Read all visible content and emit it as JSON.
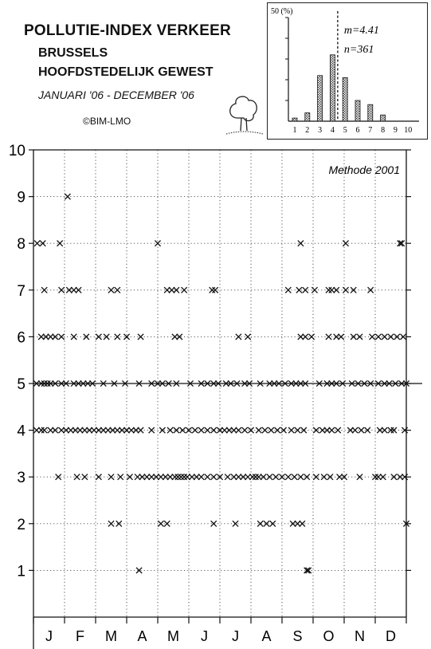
{
  "header": {
    "title": "POLLUTIE-INDEX VERKEER",
    "subtitle_line1": "BRUSSELS",
    "subtitle_line2": "HOOFDSTEDELIJK GEWEST",
    "period": "JANUARI '06 - DECEMBER '06",
    "credit": "©BIM-LMO"
  },
  "chart_data": [
    {
      "type": "scatter",
      "title": "",
      "method_label": "Methode 2001",
      "xlabel": "",
      "ylabel": "",
      "x_categories": [
        "J",
        "F",
        "M",
        "A",
        "M",
        "J",
        "J",
        "A",
        "S",
        "O",
        "N",
        "D"
      ],
      "ylim": [
        0,
        10
      ],
      "y_ticks": [
        1,
        2,
        3,
        4,
        5,
        6,
        7,
        8,
        9,
        10
      ],
      "grid": "dotted",
      "reference_line_y": 5,
      "marker": "x",
      "note": "x = month position (0-12 from start of year), y = daily pollution index",
      "points": [
        [
          0.12,
          8
        ],
        [
          0.3,
          8
        ],
        [
          0.85,
          8
        ],
        [
          4.0,
          8
        ],
        [
          8.6,
          8
        ],
        [
          10.05,
          8
        ],
        [
          11.8,
          8
        ],
        [
          11.85,
          8
        ],
        [
          1.1,
          9
        ],
        [
          0.35,
          7
        ],
        [
          0.9,
          7
        ],
        [
          1.15,
          7
        ],
        [
          1.3,
          7
        ],
        [
          1.45,
          7
        ],
        [
          2.5,
          7
        ],
        [
          2.7,
          7
        ],
        [
          4.3,
          7
        ],
        [
          4.45,
          7
        ],
        [
          4.6,
          7
        ],
        [
          4.85,
          7
        ],
        [
          5.75,
          7
        ],
        [
          5.85,
          7
        ],
        [
          8.2,
          7
        ],
        [
          8.55,
          7
        ],
        [
          8.75,
          7
        ],
        [
          9.05,
          7
        ],
        [
          9.5,
          7
        ],
        [
          9.6,
          7
        ],
        [
          9.75,
          7
        ],
        [
          10.05,
          7
        ],
        [
          10.3,
          7
        ],
        [
          10.85,
          7
        ],
        [
          0.25,
          6
        ],
        [
          0.4,
          6
        ],
        [
          0.55,
          6
        ],
        [
          0.7,
          6
        ],
        [
          0.9,
          6
        ],
        [
          1.3,
          6
        ],
        [
          1.7,
          6
        ],
        [
          2.1,
          6
        ],
        [
          2.35,
          6
        ],
        [
          2.7,
          6
        ],
        [
          3.0,
          6
        ],
        [
          3.45,
          6
        ],
        [
          4.55,
          6
        ],
        [
          4.7,
          6
        ],
        [
          6.6,
          6
        ],
        [
          6.9,
          6
        ],
        [
          8.6,
          6
        ],
        [
          8.75,
          6
        ],
        [
          8.95,
          6
        ],
        [
          9.5,
          6
        ],
        [
          9.75,
          6
        ],
        [
          9.9,
          6
        ],
        [
          10.3,
          6
        ],
        [
          10.5,
          6
        ],
        [
          10.9,
          6
        ],
        [
          11.1,
          6
        ],
        [
          11.3,
          6
        ],
        [
          11.5,
          6
        ],
        [
          11.7,
          6
        ],
        [
          11.9,
          6
        ],
        [
          0.1,
          5
        ],
        [
          0.25,
          5
        ],
        [
          0.35,
          5
        ],
        [
          0.45,
          5
        ],
        [
          0.55,
          5
        ],
        [
          0.7,
          5
        ],
        [
          0.9,
          5
        ],
        [
          1.05,
          5
        ],
        [
          1.3,
          5
        ],
        [
          1.45,
          5
        ],
        [
          1.6,
          5
        ],
        [
          1.75,
          5
        ],
        [
          1.9,
          5
        ],
        [
          2.25,
          5
        ],
        [
          2.6,
          5
        ],
        [
          2.95,
          5
        ],
        [
          3.4,
          5
        ],
        [
          3.8,
          5
        ],
        [
          4.0,
          5
        ],
        [
          4.15,
          5
        ],
        [
          4.35,
          5
        ],
        [
          4.6,
          5
        ],
        [
          5.05,
          5
        ],
        [
          5.4,
          5
        ],
        [
          5.6,
          5
        ],
        [
          5.8,
          5
        ],
        [
          5.95,
          5
        ],
        [
          6.2,
          5
        ],
        [
          6.35,
          5
        ],
        [
          6.55,
          5
        ],
        [
          6.8,
          5
        ],
        [
          6.95,
          5
        ],
        [
          7.3,
          5
        ],
        [
          7.6,
          5
        ],
        [
          7.75,
          5
        ],
        [
          7.9,
          5
        ],
        [
          8.1,
          5
        ],
        [
          8.3,
          5
        ],
        [
          8.45,
          5
        ],
        [
          8.6,
          5
        ],
        [
          8.75,
          5
        ],
        [
          9.2,
          5
        ],
        [
          9.45,
          5
        ],
        [
          9.6,
          5
        ],
        [
          9.75,
          5
        ],
        [
          9.95,
          5
        ],
        [
          10.25,
          5
        ],
        [
          10.45,
          5
        ],
        [
          10.65,
          5
        ],
        [
          10.85,
          5
        ],
        [
          11.1,
          5
        ],
        [
          11.3,
          5
        ],
        [
          11.45,
          5
        ],
        [
          11.65,
          5
        ],
        [
          11.85,
          5
        ],
        [
          12.0,
          5
        ],
        [
          0.1,
          4
        ],
        [
          0.25,
          4
        ],
        [
          0.35,
          4
        ],
        [
          0.55,
          4
        ],
        [
          0.7,
          4
        ],
        [
          0.9,
          4
        ],
        [
          1.05,
          4
        ],
        [
          1.2,
          4
        ],
        [
          1.35,
          4
        ],
        [
          1.5,
          4
        ],
        [
          1.65,
          4
        ],
        [
          1.8,
          4
        ],
        [
          1.95,
          4
        ],
        [
          2.1,
          4
        ],
        [
          2.25,
          4
        ],
        [
          2.4,
          4
        ],
        [
          2.55,
          4
        ],
        [
          2.7,
          4
        ],
        [
          2.85,
          4
        ],
        [
          3.0,
          4
        ],
        [
          3.15,
          4
        ],
        [
          3.3,
          4
        ],
        [
          3.45,
          4
        ],
        [
          3.8,
          4
        ],
        [
          4.15,
          4
        ],
        [
          4.4,
          4
        ],
        [
          4.6,
          4
        ],
        [
          4.8,
          4
        ],
        [
          5.0,
          4
        ],
        [
          5.2,
          4
        ],
        [
          5.4,
          4
        ],
        [
          5.6,
          4
        ],
        [
          5.8,
          4
        ],
        [
          6.0,
          4
        ],
        [
          6.15,
          4
        ],
        [
          6.3,
          4
        ],
        [
          6.45,
          4
        ],
        [
          6.6,
          4
        ],
        [
          6.8,
          4
        ],
        [
          7.0,
          4
        ],
        [
          7.25,
          4
        ],
        [
          7.45,
          4
        ],
        [
          7.65,
          4
        ],
        [
          7.85,
          4
        ],
        [
          8.05,
          4
        ],
        [
          8.3,
          4
        ],
        [
          8.5,
          4
        ],
        [
          8.7,
          4
        ],
        [
          9.1,
          4
        ],
        [
          9.3,
          4
        ],
        [
          9.45,
          4
        ],
        [
          9.6,
          4
        ],
        [
          9.8,
          4
        ],
        [
          10.2,
          4
        ],
        [
          10.35,
          4
        ],
        [
          10.55,
          4
        ],
        [
          10.75,
          4
        ],
        [
          11.15,
          4
        ],
        [
          11.3,
          4
        ],
        [
          11.5,
          4
        ],
        [
          11.6,
          4
        ],
        [
          11.95,
          4
        ],
        [
          0.8,
          3
        ],
        [
          1.4,
          3
        ],
        [
          1.65,
          3
        ],
        [
          2.1,
          3
        ],
        [
          2.5,
          3
        ],
        [
          2.8,
          3
        ],
        [
          3.1,
          3
        ],
        [
          3.35,
          3
        ],
        [
          3.5,
          3
        ],
        [
          3.65,
          3
        ],
        [
          3.8,
          3
        ],
        [
          3.95,
          3
        ],
        [
          4.1,
          3
        ],
        [
          4.25,
          3
        ],
        [
          4.4,
          3
        ],
        [
          4.55,
          3
        ],
        [
          4.65,
          3
        ],
        [
          4.75,
          3
        ],
        [
          4.85,
          3
        ],
        [
          4.95,
          3
        ],
        [
          5.1,
          3
        ],
        [
          5.25,
          3
        ],
        [
          5.4,
          3
        ],
        [
          5.6,
          3
        ],
        [
          5.8,
          3
        ],
        [
          6.0,
          3
        ],
        [
          6.25,
          3
        ],
        [
          6.45,
          3
        ],
        [
          6.6,
          3
        ],
        [
          6.75,
          3
        ],
        [
          6.9,
          3
        ],
        [
          7.05,
          3
        ],
        [
          7.15,
          3
        ],
        [
          7.25,
          3
        ],
        [
          7.4,
          3
        ],
        [
          7.6,
          3
        ],
        [
          7.8,
          3
        ],
        [
          8.0,
          3
        ],
        [
          8.2,
          3
        ],
        [
          8.4,
          3
        ],
        [
          8.6,
          3
        ],
        [
          8.8,
          3
        ],
        [
          9.1,
          3
        ],
        [
          9.35,
          3
        ],
        [
          9.55,
          3
        ],
        [
          9.85,
          3
        ],
        [
          10.0,
          3
        ],
        [
          10.5,
          3
        ],
        [
          11.0,
          3
        ],
        [
          11.1,
          3
        ],
        [
          11.25,
          3
        ],
        [
          11.6,
          3
        ],
        [
          11.8,
          3
        ],
        [
          11.95,
          3
        ],
        [
          2.5,
          2
        ],
        [
          2.75,
          2
        ],
        [
          4.1,
          2
        ],
        [
          4.3,
          2
        ],
        [
          5.8,
          2
        ],
        [
          6.5,
          2
        ],
        [
          7.3,
          2
        ],
        [
          7.5,
          2
        ],
        [
          7.7,
          2
        ],
        [
          8.35,
          2
        ],
        [
          8.5,
          2
        ],
        [
          8.65,
          2
        ],
        [
          12.0,
          2
        ],
        [
          3.4,
          1
        ],
        [
          8.8,
          1
        ],
        [
          8.85,
          1
        ]
      ]
    },
    {
      "type": "bar",
      "title": "",
      "ylabel": "50 (%)",
      "categories": [
        "1",
        "2",
        "3",
        "4",
        "5",
        "6",
        "7",
        "8",
        "9",
        "10"
      ],
      "values": [
        1.5,
        4,
        22,
        32,
        21,
        10,
        8,
        3,
        0,
        0
      ],
      "ylim": [
        0,
        50
      ],
      "mean": 4.41,
      "mean_label": "m=4.41",
      "n_label": "n=361"
    }
  ]
}
